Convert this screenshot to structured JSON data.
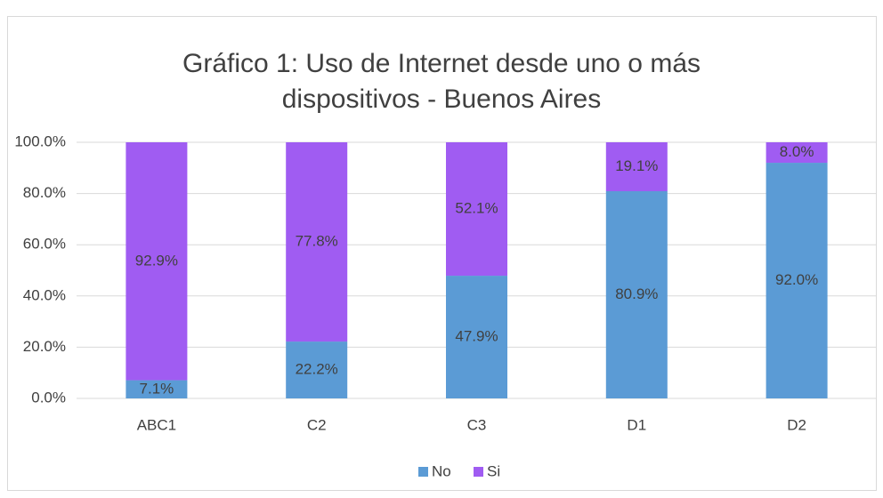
{
  "chart_data": {
    "type": "stacked_bar",
    "title": "Gráfico 1: Uso de Internet desde uno o más dispositivos - Buenos Aires",
    "categories": [
      "ABC1",
      "C2",
      "C3",
      "D1",
      "D2"
    ],
    "series": [
      {
        "name": "No",
        "color": "#5b9bd5",
        "values": [
          7.1,
          22.2,
          47.9,
          80.9,
          92.0
        ],
        "value_labels": [
          "7.1%",
          "22.2%",
          "47.9%",
          "80.9%",
          "92.0%"
        ]
      },
      {
        "name": "Si",
        "color": "#a05cf2",
        "values": [
          92.9,
          77.8,
          52.1,
          19.1,
          8.0
        ],
        "value_labels": [
          "92.9%",
          "77.8%",
          "52.1%",
          "19.1%",
          "8.0%"
        ]
      }
    ],
    "ylim": [
      0,
      100
    ],
    "yticks": [
      {
        "value": 0,
        "label": "0.0%"
      },
      {
        "value": 20,
        "label": "20.0%"
      },
      {
        "value": 40,
        "label": "40.0%"
      },
      {
        "value": 60,
        "label": "60.0%"
      },
      {
        "value": 80,
        "label": "80.0%"
      },
      {
        "value": 100,
        "label": "100.0%"
      }
    ],
    "grid": true,
    "legend": "bottom"
  }
}
